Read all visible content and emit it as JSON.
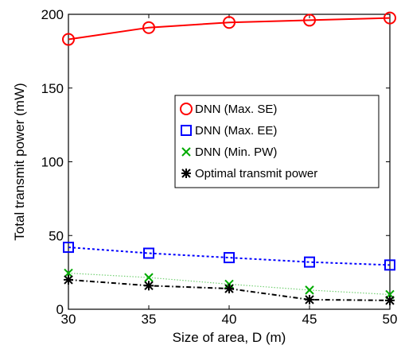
{
  "chart_data": {
    "type": "line",
    "xlabel": "Size of area, D (m)",
    "ylabel": "Total transmit power (mW)",
    "x": [
      30,
      35,
      40,
      45,
      50
    ],
    "xlim": [
      30,
      50
    ],
    "ylim": [
      0,
      200
    ],
    "xticks": [
      30,
      35,
      40,
      45,
      50
    ],
    "yticks": [
      0,
      50,
      100,
      150,
      200
    ],
    "grid": false,
    "legend_position": "center-right",
    "series": [
      {
        "name": "DNN (Max. SE)",
        "values": [
          183,
          191,
          194.5,
          196,
          197.5
        ],
        "color": "#ff0000",
        "marker": "circle",
        "line": "solid"
      },
      {
        "name": "DNN (Max. EE)",
        "values": [
          42,
          38,
          35,
          32,
          30
        ],
        "color": "#0000ff",
        "marker": "square",
        "line": "dotted"
      },
      {
        "name": "DNN (Min. PW)",
        "values": [
          24.5,
          21.5,
          17,
          13,
          10
        ],
        "color": "#00aa00",
        "marker": "x",
        "line": "dotted-light"
      },
      {
        "name": "Optimal transmit power",
        "values": [
          20,
          16,
          14,
          6.5,
          6
        ],
        "color": "#000000",
        "marker": "asterisk",
        "line": "dashdot"
      }
    ]
  }
}
